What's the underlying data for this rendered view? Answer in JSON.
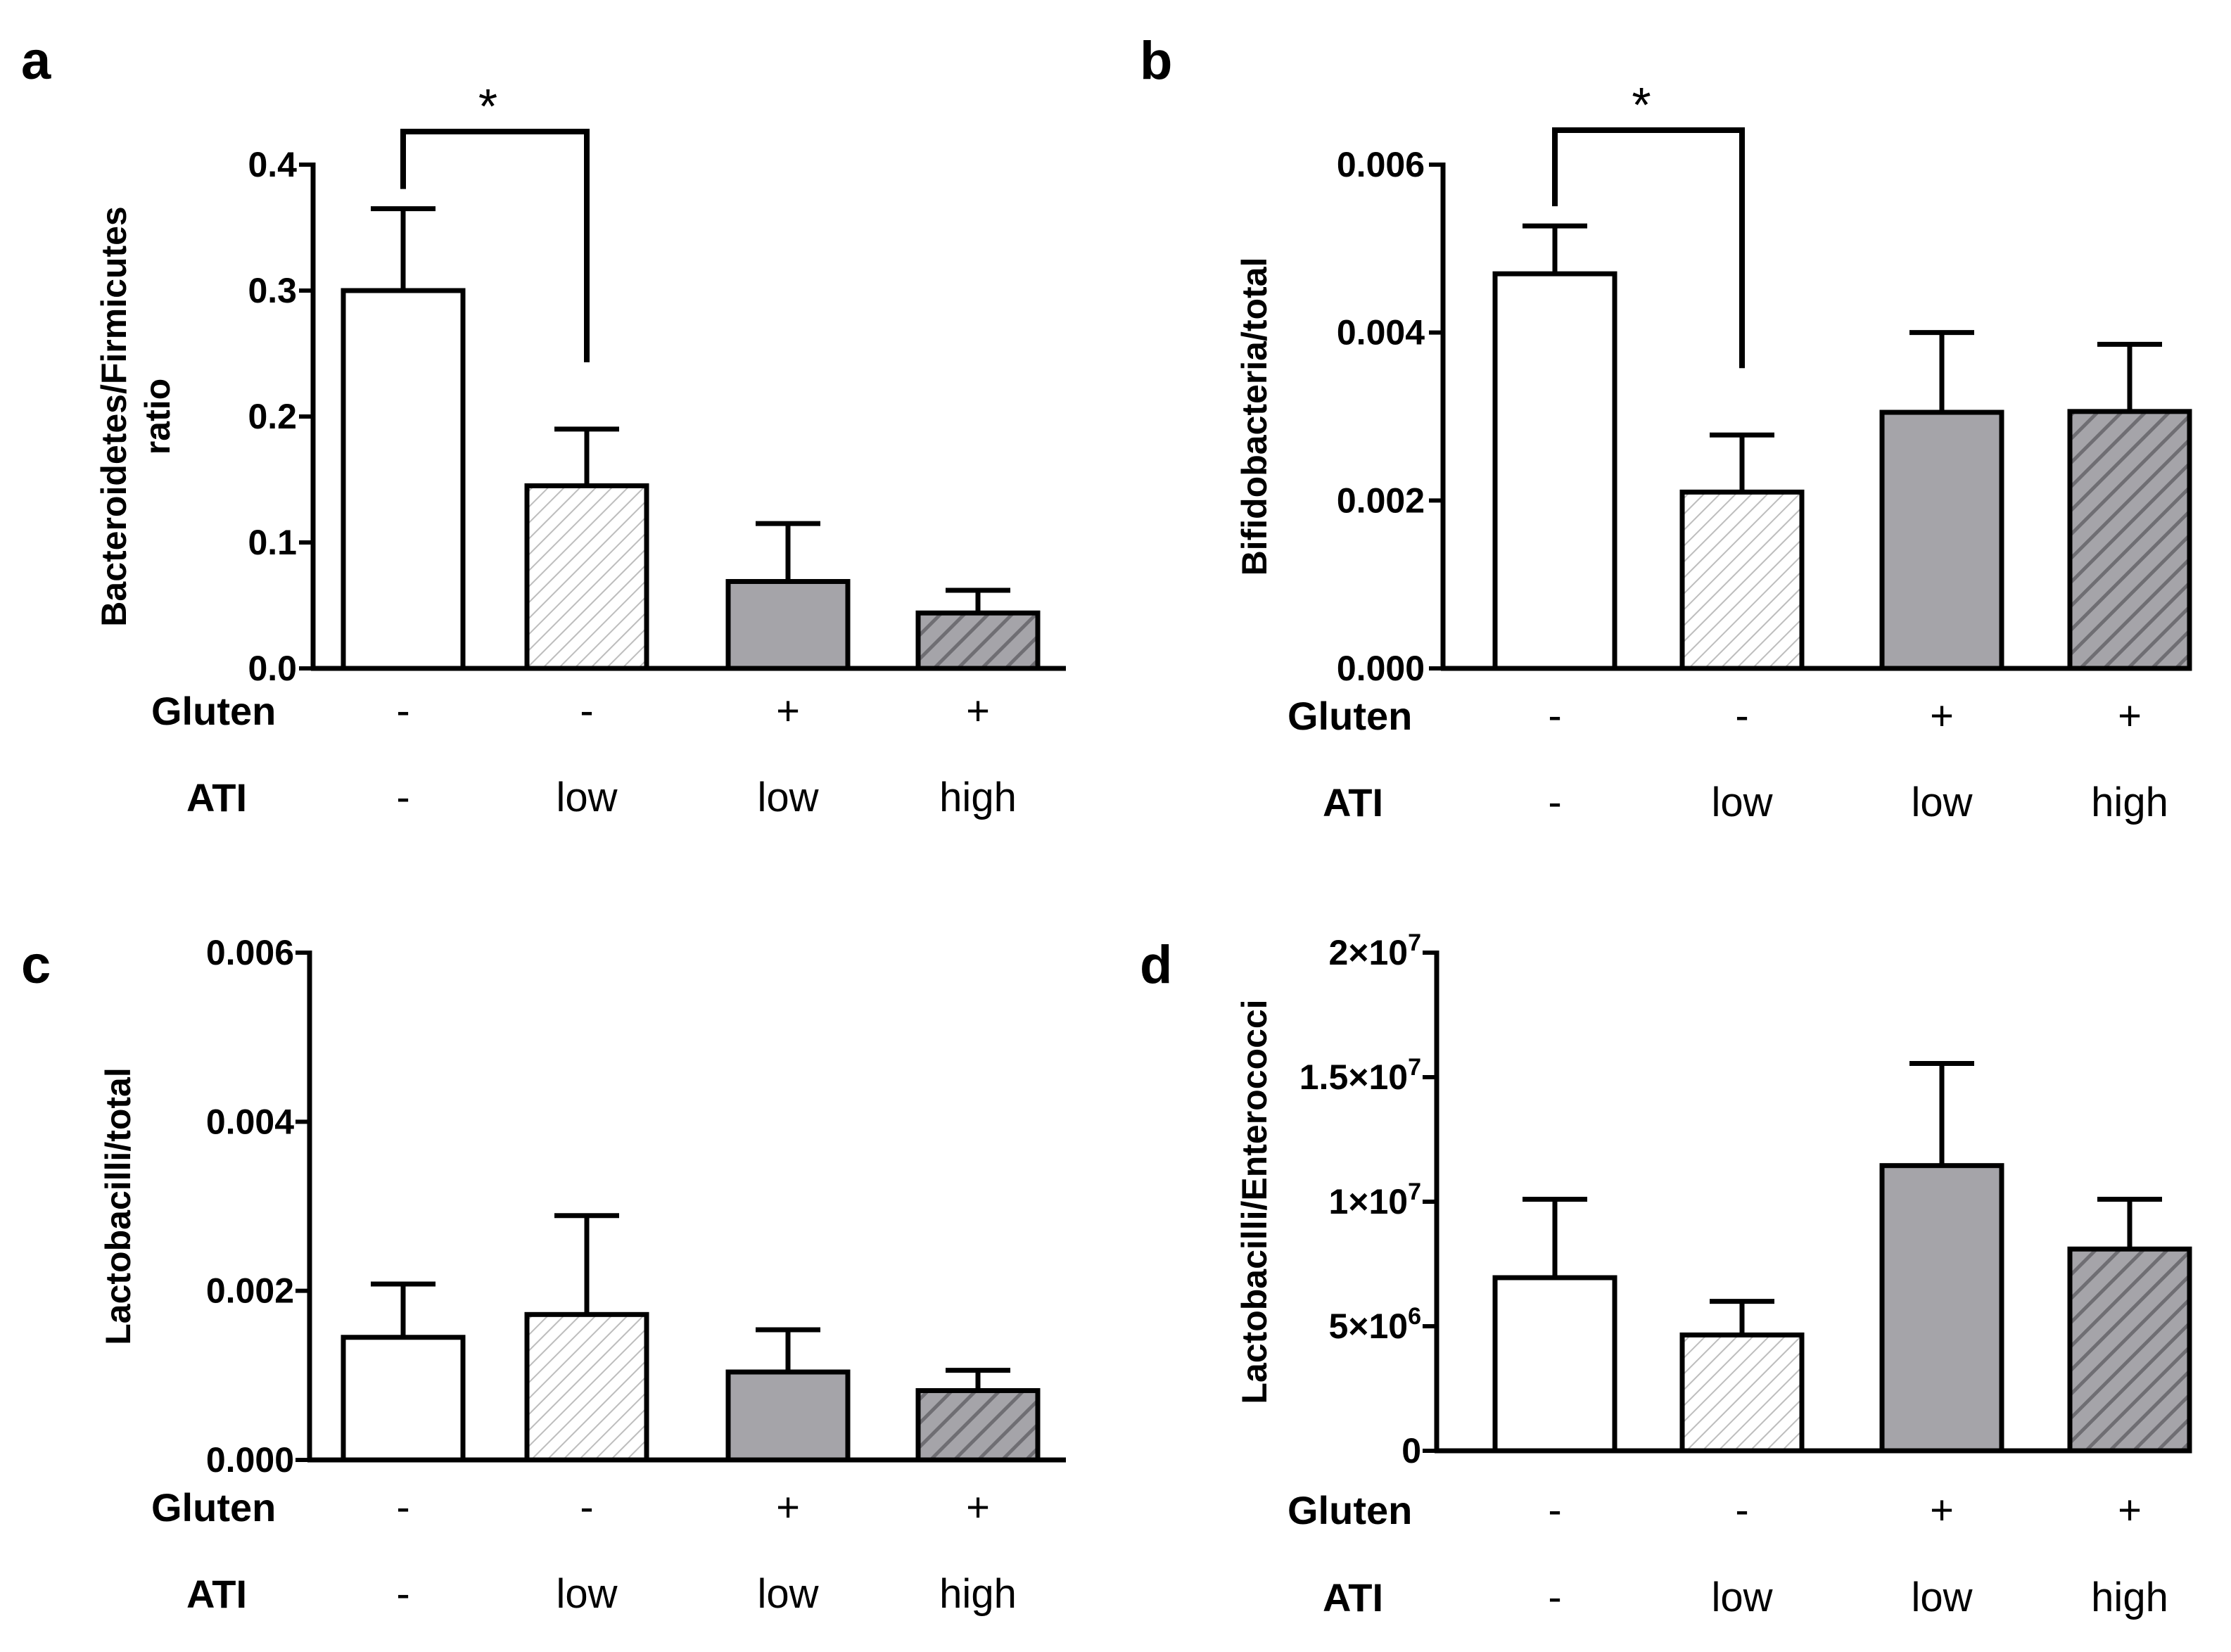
{
  "colors": {
    "axis": "#000000",
    "bar_outline": "#000000",
    "open_fill": "#ffffff",
    "light_hatch_bg": "#ffffff",
    "light_hatch_line": "#bdbdbd",
    "gray_fill": "#a5a4a9",
    "dark_hatch_bg": "#a5a4a9",
    "dark_hatch_line": "#6f6e73"
  },
  "chart_data": [
    {
      "panel": "a",
      "type": "bar",
      "ylabel": "Bacteroidetes/Firmicutes ratio",
      "ylim": [
        0,
        0.4
      ],
      "yticks": [
        {
          "v": 0,
          "label": "0.0"
        },
        {
          "v": 0.1,
          "label": "0.1"
        },
        {
          "v": 0.2,
          "label": "0.2"
        },
        {
          "v": 0.3,
          "label": "0.3"
        },
        {
          "v": 0.4,
          "label": "0.4"
        }
      ],
      "rows": {
        "gluten": "Gluten",
        "ati": "ATI"
      },
      "bars": [
        {
          "gluten": "-",
          "ati": "-",
          "value": 0.3,
          "error": 0.065,
          "fill": "open"
        },
        {
          "gluten": "-",
          "ati": "low",
          "value": 0.145,
          "error": 0.045,
          "fill": "light-hatch"
        },
        {
          "gluten": "+",
          "ati": "low",
          "value": 0.069,
          "error": 0.046,
          "fill": "gray"
        },
        {
          "gluten": "+",
          "ati": "high",
          "value": 0.044,
          "error": 0.018,
          "fill": "dark-hatch"
        }
      ],
      "significance": {
        "from": 0,
        "to": 1,
        "label": "*"
      }
    },
    {
      "panel": "b",
      "type": "bar",
      "ylabel": "Bifidobacteria/total",
      "ylim": [
        0,
        0.006
      ],
      "yticks": [
        {
          "v": 0,
          "label": "0.000"
        },
        {
          "v": 0.002,
          "label": "0.002"
        },
        {
          "v": 0.004,
          "label": "0.004"
        },
        {
          "v": 0.006,
          "label": "0.006"
        }
      ],
      "rows": {
        "gluten": "Gluten",
        "ati": "ATI"
      },
      "bars": [
        {
          "gluten": "-",
          "ati": "-",
          "value": 0.0047,
          "error": 0.00057,
          "fill": "open"
        },
        {
          "gluten": "-",
          "ati": "low",
          "value": 0.0021,
          "error": 0.00068,
          "fill": "light-hatch"
        },
        {
          "gluten": "+",
          "ati": "low",
          "value": 0.00305,
          "error": 0.00095,
          "fill": "gray"
        },
        {
          "gluten": "+",
          "ati": "high",
          "value": 0.00306,
          "error": 0.0008,
          "fill": "dark-hatch"
        }
      ],
      "significance": {
        "from": 0,
        "to": 1,
        "label": "*"
      }
    },
    {
      "panel": "c",
      "type": "bar",
      "ylabel": "Lactobacilli/total",
      "ylim": [
        0,
        0.006
      ],
      "yticks": [
        {
          "v": 0,
          "label": "0.000"
        },
        {
          "v": 0.002,
          "label": "0.002"
        },
        {
          "v": 0.004,
          "label": "0.004"
        },
        {
          "v": 0.006,
          "label": "0.006"
        }
      ],
      "rows": {
        "gluten": "Gluten",
        "ati": "ATI"
      },
      "bars": [
        {
          "gluten": "-",
          "ati": "-",
          "value": 0.00145,
          "error": 0.00063,
          "fill": "open"
        },
        {
          "gluten": "-",
          "ati": "low",
          "value": 0.00172,
          "error": 0.00117,
          "fill": "light-hatch"
        },
        {
          "gluten": "+",
          "ati": "low",
          "value": 0.00104,
          "error": 0.0005,
          "fill": "gray"
        },
        {
          "gluten": "+",
          "ati": "high",
          "value": 0.00082,
          "error": 0.00024,
          "fill": "dark-hatch"
        }
      ],
      "significance": null
    },
    {
      "panel": "d",
      "type": "bar",
      "ylabel": "Lactobacilli/Enterococci",
      "ylim": [
        0,
        20000000
      ],
      "yticks": [
        {
          "v": 0,
          "label": "0",
          "base": "0",
          "exp": ""
        },
        {
          "v": 5000000,
          "label": "5×10^6",
          "base": "5×10",
          "exp": "6"
        },
        {
          "v": 10000000,
          "label": "1×10^7",
          "base": "1×10",
          "exp": "7"
        },
        {
          "v": 15000000,
          "label": "1.5×10^7",
          "base": "1.5×10",
          "exp": "7"
        },
        {
          "v": 20000000,
          "label": "2×10^7",
          "base": "2×10",
          "exp": "7"
        }
      ],
      "rows": {
        "gluten": "Gluten",
        "ati": "ATI"
      },
      "bars": [
        {
          "gluten": "-",
          "ati": "-",
          "value": 6950000,
          "error": 3150000,
          "fill": "open"
        },
        {
          "gluten": "-",
          "ati": "low",
          "value": 4650000,
          "error": 1350000,
          "fill": "light-hatch"
        },
        {
          "gluten": "+",
          "ati": "low",
          "value": 11450000,
          "error": 4100000,
          "fill": "gray"
        },
        {
          "gluten": "+",
          "ati": "high",
          "value": 8100000,
          "error": 2000000,
          "fill": "dark-hatch"
        }
      ],
      "significance": null
    }
  ]
}
